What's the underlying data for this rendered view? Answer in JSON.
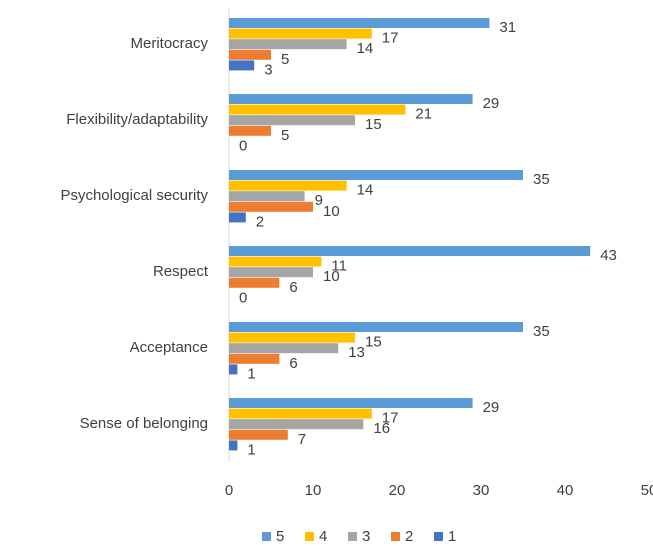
{
  "chart_data": {
    "type": "bar",
    "orientation": "horizontal",
    "categories": [
      "Meritocracy",
      "Flexibility/adaptability",
      "Psychological security",
      "Respect",
      "Acceptance",
      "Sense of belonging"
    ],
    "series": [
      {
        "name": "5",
        "color": "#5b9bd5",
        "values": [
          31,
          29,
          35,
          43,
          35,
          29
        ]
      },
      {
        "name": "4",
        "color": "#ffc000",
        "values": [
          17,
          21,
          14,
          11,
          15,
          17
        ]
      },
      {
        "name": "3",
        "color": "#a5a5a5",
        "values": [
          14,
          15,
          9,
          10,
          13,
          16
        ]
      },
      {
        "name": "2",
        "color": "#ed7d31",
        "values": [
          5,
          5,
          10,
          6,
          6,
          7
        ]
      },
      {
        "name": "1",
        "color": "#4472c4",
        "values": [
          3,
          0,
          2,
          0,
          1,
          1
        ]
      }
    ],
    "xlim": [
      0,
      50
    ],
    "xticks": [
      0,
      10,
      20,
      30,
      40,
      50
    ],
    "grid": false,
    "legend": "bottom"
  }
}
